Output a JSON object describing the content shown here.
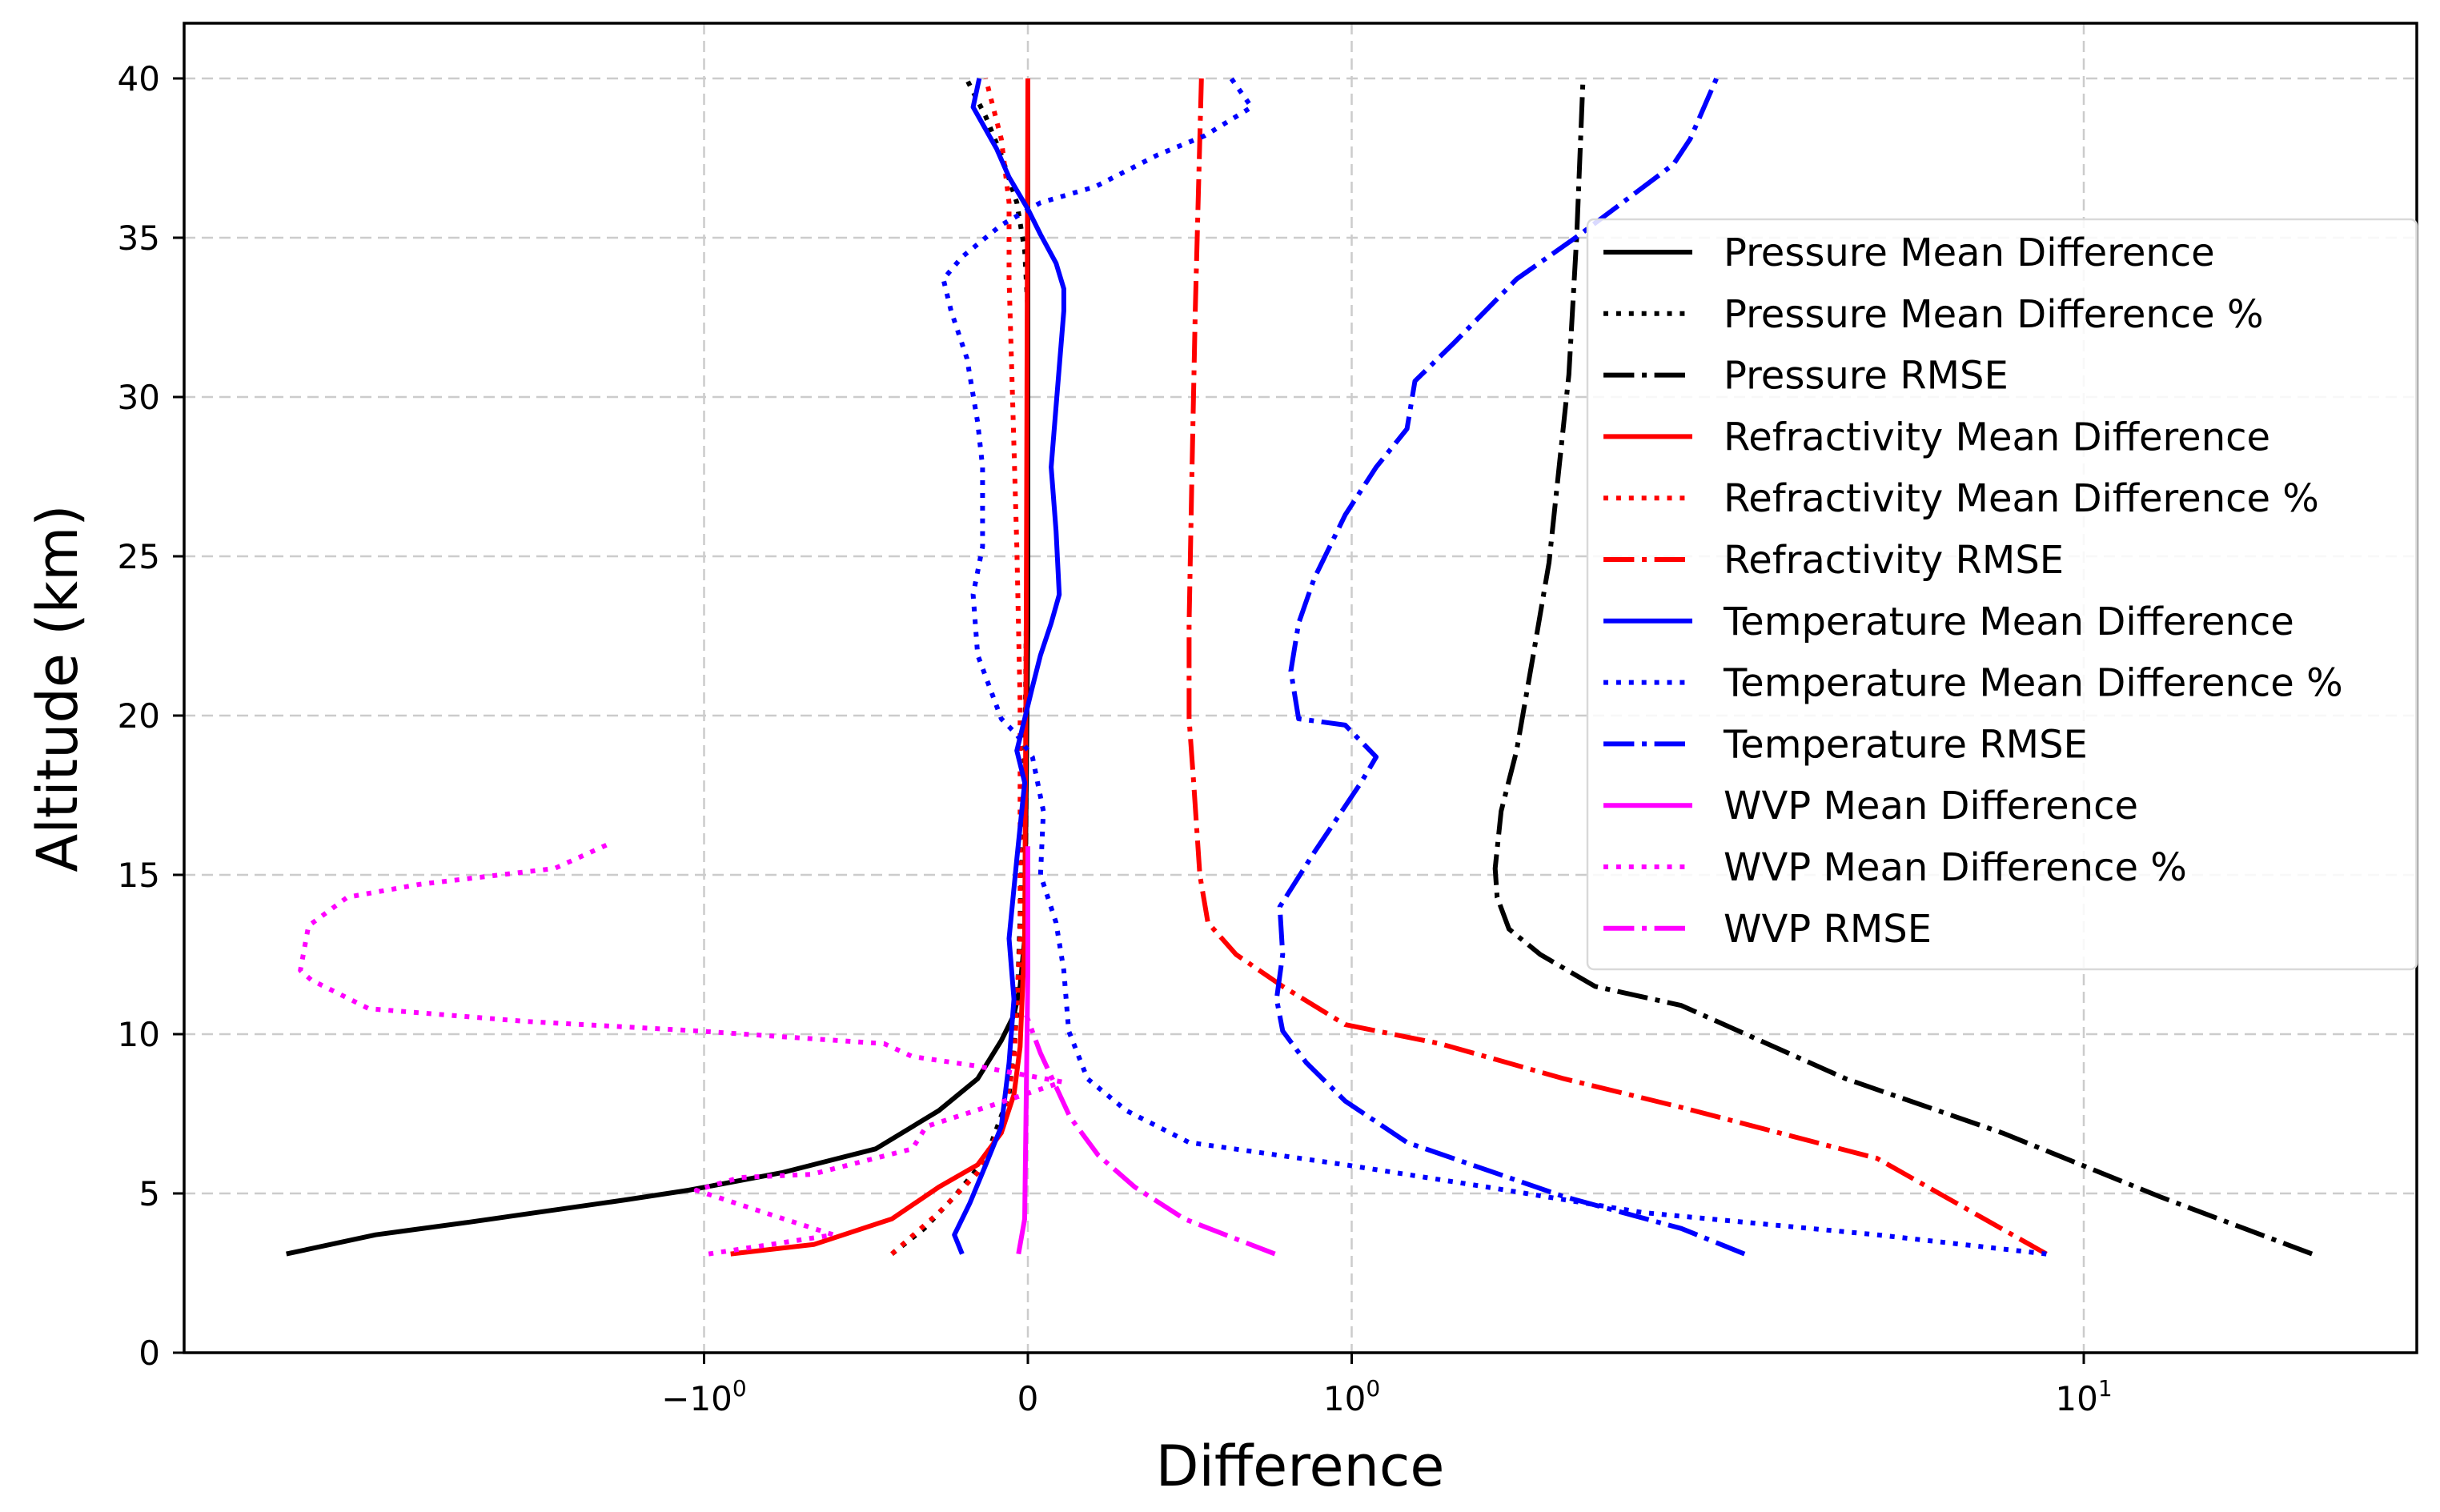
{
  "chart_data": {
    "type": "line",
    "title": "",
    "xlabel": "Difference",
    "ylabel": "Altitude (km)",
    "xscale": "symlog",
    "xscale_linthresh": 1,
    "xlim": [
      -5.1,
      28.5
    ],
    "ylim": [
      0,
      41.5
    ],
    "grid": true,
    "grid_style": "dashed",
    "legend_position": "center-right",
    "xticks": [
      {
        "value": -1,
        "label": "−10",
        "sup": "0"
      },
      {
        "value": 0,
        "label": "0",
        "sup": ""
      },
      {
        "value": 1,
        "label": "10",
        "sup": "0"
      },
      {
        "value": 10,
        "label": "10",
        "sup": "1"
      }
    ],
    "yticks": [
      {
        "value": 0,
        "label": "0"
      },
      {
        "value": 5,
        "label": "5"
      },
      {
        "value": 10,
        "label": "10"
      },
      {
        "value": 15,
        "label": "15"
      },
      {
        "value": 20,
        "label": "20"
      },
      {
        "value": 25,
        "label": "25"
      },
      {
        "value": 30,
        "label": "30"
      },
      {
        "value": 35,
        "label": "35"
      },
      {
        "value": 40,
        "label": "40"
      }
    ],
    "series": [
      {
        "name": "Pressure Mean Difference",
        "color": "#000000",
        "style": "solid",
        "x": [
          -3.72,
          -2.81,
          -2.09,
          -1.28,
          -1.05,
          -0.76,
          -0.47,
          -0.275,
          -0.155,
          -0.082,
          -0.043,
          -0.024,
          -0.01,
          -0.005,
          0,
          0
        ],
        "y": [
          3.1,
          3.7,
          4.1,
          4.8,
          5.1,
          5.65,
          6.4,
          7.6,
          8.6,
          9.8,
          10.6,
          11.5,
          13,
          17.9,
          22.9,
          40
        ]
      },
      {
        "name": "Pressure Mean Difference %",
        "color": "#000000",
        "style": "dotted",
        "x": [
          -0.42,
          -0.32,
          -0.227,
          -0.13,
          -0.058,
          -0.034,
          -0.01,
          0,
          0,
          -0.01,
          -0.034,
          -0.082,
          -0.13,
          -0.19
        ],
        "y": [
          3.1,
          3.9,
          4.9,
          6.1,
          8.1,
          10.6,
          17.9,
          27.8,
          32.7,
          34.6,
          36.1,
          37.6,
          38.8,
          40
        ]
      },
      {
        "name": "Pressure RMSE",
        "color": "#000000",
        "style": "dashdot",
        "x": [
          20.5,
          12.7,
          7.74,
          4.73,
          2.82,
          2.15,
          1.81,
          1.64,
          1.58,
          1.57,
          1.6,
          1.68,
          1.77,
          1.86,
          1.92,
          1.98,
          2.03,
          2.07
        ],
        "y": [
          3.1,
          4.9,
          6.9,
          8.6,
          10.9,
          11.5,
          12.5,
          13.3,
          14.3,
          15.2,
          17,
          18.9,
          21.9,
          24.8,
          27.8,
          30.7,
          35.1,
          40
        ]
      },
      {
        "name": "Refractivity Mean Difference",
        "color": "#ff0000",
        "style": "solid",
        "x": [
          -0.918,
          -0.66,
          -0.42,
          -0.275,
          -0.155,
          -0.082,
          -0.043,
          -0.024,
          -0.01,
          -0.005,
          0
        ],
        "y": [
          3.1,
          3.4,
          4.2,
          5.2,
          5.9,
          6.9,
          8.1,
          9.6,
          13,
          22.9,
          40
        ]
      },
      {
        "name": "Refractivity Mean Difference %",
        "color": "#ff0000",
        "style": "dotted",
        "x": [
          -0.42,
          -0.275,
          -0.155,
          -0.082,
          -0.043,
          -0.024,
          -0.024,
          -0.034,
          -0.048,
          -0.058,
          -0.058,
          -0.082,
          -0.13
        ],
        "y": [
          3.1,
          4.4,
          5.65,
          7.1,
          9.1,
          13,
          20.4,
          25.3,
          30.2,
          33.7,
          36.1,
          38.1,
          40
        ]
      },
      {
        "name": "Refractivity RMSE",
        "color": "#ff0000",
        "style": "dashdot",
        "x": [
          8.89,
          5.22,
          2.82,
          1.95,
          1.32,
          0.98,
          0.787,
          0.643,
          0.556,
          0.531,
          0.512,
          0.498,
          0.498,
          0.507,
          0.517,
          0.527,
          0.536
        ],
        "y": [
          3.1,
          6.1,
          7.7,
          8.6,
          9.7,
          10.3,
          11.5,
          12.5,
          13.5,
          15,
          17.9,
          19.9,
          22.9,
          27.8,
          32.7,
          36.6,
          40
        ]
      },
      {
        "name": "Temperature Mean Difference",
        "color": "#0000ff",
        "style": "solid",
        "x": [
          -0.203,
          -0.227,
          -0.179,
          -0.13,
          -0.082,
          -0.058,
          -0.043,
          -0.058,
          -0.034,
          -0.01,
          -0.034,
          -0.01,
          0.014,
          0.039,
          0.072,
          0.097,
          0.087,
          0.072,
          0.087,
          0.111,
          0.111,
          0.087,
          0.039,
          0,
          -0.058,
          -0.097,
          -0.169,
          -0.15
        ],
        "y": [
          3.1,
          3.7,
          4.7,
          5.9,
          7.1,
          9.1,
          11.1,
          13,
          15.5,
          17.9,
          18.9,
          19.9,
          20.9,
          21.9,
          22.9,
          23.8,
          25.8,
          27.8,
          29.7,
          32.7,
          33.4,
          34.2,
          35.1,
          35.9,
          36.9,
          37.8,
          39.1,
          40
        ]
      },
      {
        "name": "Temperature Mean Difference %",
        "color": "#0000ff",
        "style": "dotted",
        "x": [
          8.89,
          5.22,
          2.5,
          1.53,
          0.98,
          0.498,
          0.304,
          0.184,
          0.126,
          0.111,
          0.087,
          0.039,
          0.048,
          0.014,
          -0.034,
          -0.082,
          -0.155,
          -0.169,
          -0.14,
          -0.14,
          -0.155,
          -0.188,
          -0.237,
          -0.261,
          -0.203,
          -0.082,
          0.039,
          0.208,
          0.401,
          0.546,
          0.691,
          0.628
        ],
        "y": [
          3.1,
          3.7,
          4.4,
          5.2,
          5.9,
          6.6,
          7.6,
          8.6,
          10.1,
          12,
          13.5,
          15,
          17,
          18.7,
          19.4,
          19.9,
          21.9,
          23.8,
          25.3,
          27.8,
          29.2,
          31.2,
          32.7,
          33.7,
          34.4,
          35.4,
          36.1,
          36.6,
          37.6,
          38.2,
          39.1,
          40
        ]
      },
      {
        "name": "Temperature RMSE",
        "color": "#0000ff",
        "style": "dashdot",
        "x": [
          3.44,
          2.82,
          1.95,
          1.19,
          0.98,
          0.86,
          0.787,
          0.768,
          0.787,
          0.778,
          0.884,
          1.03,
          1.08,
          0.98,
          0.836,
          0.812,
          0.836,
          0.884,
          0.98,
          1.08,
          1.19,
          1.22,
          1.38,
          1.68,
          2.05,
          2.75,
          2.9,
          3.15
        ],
        "y": [
          3.1,
          3.9,
          4.9,
          6.6,
          7.9,
          9.1,
          10.1,
          11.1,
          12.5,
          14,
          15.7,
          17.9,
          18.7,
          19.7,
          19.9,
          21.4,
          22.9,
          24.3,
          26.3,
          27.8,
          29,
          30.5,
          31.7,
          33.7,
          35.1,
          37.3,
          38.1,
          40
        ]
      },
      {
        "name": "WVP Mean Difference",
        "color": "#ff00ff",
        "style": "solid",
        "x": [
          -0.029,
          -0.01,
          -0.005,
          0,
          0
        ],
        "y": [
          3.1,
          4.2,
          8.1,
          12,
          15.9
        ]
      },
      {
        "name": "WVP Mean Difference %",
        "color": "#ff00ff",
        "style": "dotted",
        "x": [
          -0.986,
          -0.6,
          -0.754,
          -1.025,
          -0.889,
          -0.667,
          -0.357,
          -0.314,
          -0.101,
          0.106,
          -0.159,
          -0.357,
          -0.444,
          -1.02,
          -1.75,
          -2.87,
          -3.44,
          -3.56,
          -3.47,
          -3.07,
          -2.45,
          -1.6,
          -1.34
        ],
        "y": [
          3.1,
          3.7,
          4.2,
          5.1,
          5.5,
          5.6,
          6.4,
          7.1,
          7.8,
          8.5,
          9.0,
          9.3,
          9.7,
          10.1,
          10.4,
          10.8,
          11.7,
          12.0,
          13.4,
          14.3,
          14.7,
          15.2,
          16.0
        ]
      },
      {
        "name": "WVP RMSE",
        "color": "#ff00ff",
        "style": "dashdot",
        "x": [
          0.763,
          0.483,
          0.33,
          0.217,
          0.13,
          0.039,
          -0.005
        ],
        "y": [
          3.1,
          4.2,
          5.2,
          6.2,
          7.4,
          9.4,
          10.6
        ]
      }
    ]
  }
}
